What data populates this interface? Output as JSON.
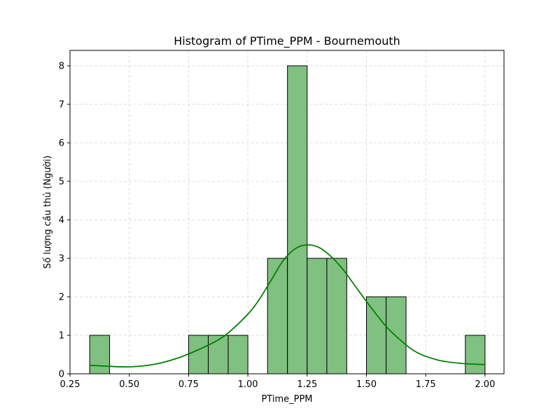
{
  "chart_data": {
    "type": "bar",
    "title": "Histogram of PTime_PPM - Bournemouth",
    "xlabel": "PTime_PPM",
    "ylabel": "Số lượng cầu thủ (Người)",
    "xlim": [
      0.25,
      2.08
    ],
    "ylim": [
      0,
      8.4
    ],
    "xticks": [
      0.25,
      0.5,
      0.75,
      1.0,
      1.25,
      1.5,
      1.75,
      2.0
    ],
    "xtick_labels": [
      "0.25",
      "0.50",
      "0.75",
      "1.00",
      "1.25",
      "1.50",
      "1.75",
      "2.00"
    ],
    "yticks": [
      0,
      1,
      2,
      3,
      4,
      5,
      6,
      7,
      8
    ],
    "ytick_labels": [
      "0",
      "1",
      "2",
      "3",
      "4",
      "5",
      "6",
      "7",
      "8"
    ],
    "grid": true,
    "bins": [
      {
        "x0": 0.333,
        "x1": 0.417,
        "count": 1
      },
      {
        "x0": 0.75,
        "x1": 0.833,
        "count": 1
      },
      {
        "x0": 0.833,
        "x1": 0.917,
        "count": 1
      },
      {
        "x0": 0.917,
        "x1": 1.0,
        "count": 1
      },
      {
        "x0": 1.083,
        "x1": 1.167,
        "count": 3
      },
      {
        "x0": 1.167,
        "x1": 1.25,
        "count": 8
      },
      {
        "x0": 1.25,
        "x1": 1.333,
        "count": 3
      },
      {
        "x0": 1.333,
        "x1": 1.417,
        "count": 3
      },
      {
        "x0": 1.5,
        "x1": 1.583,
        "count": 2
      },
      {
        "x0": 1.583,
        "x1": 1.667,
        "count": 2
      },
      {
        "x0": 1.917,
        "x1": 2.0,
        "count": 1
      }
    ],
    "kde": {
      "x": [
        0.333,
        0.4,
        0.5,
        0.6,
        0.7,
        0.8,
        0.9,
        1.0,
        1.05,
        1.1,
        1.15,
        1.2,
        1.25,
        1.3,
        1.35,
        1.4,
        1.45,
        1.5,
        1.55,
        1.6,
        1.7,
        1.8,
        1.9,
        2.0
      ],
      "y": [
        0.22,
        0.2,
        0.18,
        0.24,
        0.4,
        0.65,
        0.98,
        1.55,
        1.95,
        2.45,
        2.95,
        3.25,
        3.35,
        3.28,
        3.05,
        2.72,
        2.3,
        1.88,
        1.48,
        1.12,
        0.6,
        0.36,
        0.27,
        0.24
      ]
    },
    "colors": {
      "bar_fill": "#80c080",
      "bar_edge": "#000000",
      "kde_line": "#008000",
      "grid": "#d3d3d3"
    }
  }
}
